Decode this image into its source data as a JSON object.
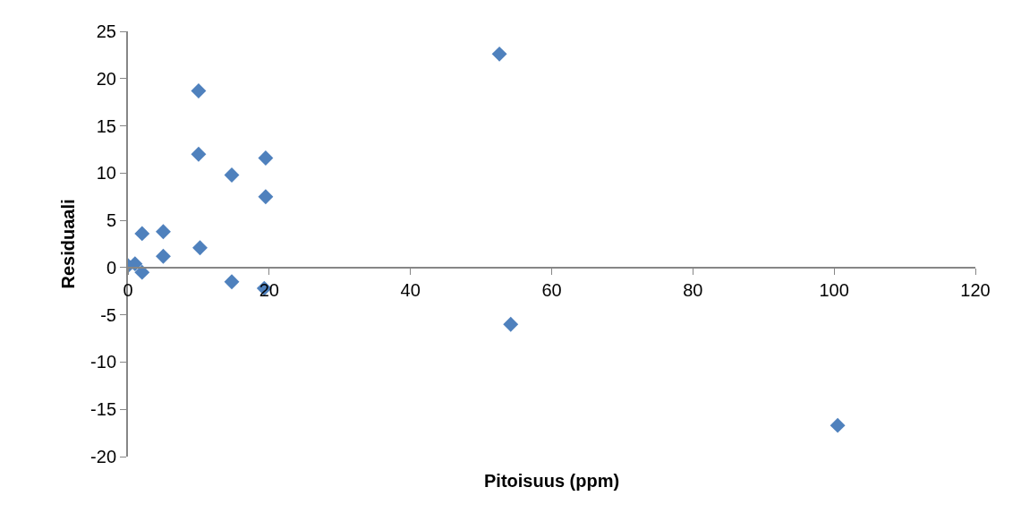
{
  "chart_data": {
    "type": "scatter",
    "xlabel": "Pitoisuus (ppm)",
    "ylabel": "Residuaali",
    "x": [
      0,
      1,
      2,
      2,
      5,
      5,
      10,
      10,
      10.2,
      14.7,
      14.7,
      19.5,
      19.5,
      19.3,
      52.6,
      54.2,
      100.5
    ],
    "series": [
      {
        "color": "#4f81bd",
        "values": [
          0.2,
          0.4,
          -0.5,
          3.6,
          3.8,
          1.2,
          18.7,
          12,
          2.1,
          9.8,
          -1.5,
          11.6,
          7.5,
          -2.2,
          22.6,
          -6,
          -16.7
        ]
      }
    ],
    "xlim": [
      0,
      120
    ],
    "xticks": [
      0,
      20,
      40,
      60,
      80,
      100,
      120
    ],
    "ylim": [
      -20,
      25
    ],
    "yticks": [
      -20,
      -15,
      -10,
      -5,
      0,
      5,
      10,
      15,
      20,
      25
    ],
    "marker": "diamond"
  }
}
